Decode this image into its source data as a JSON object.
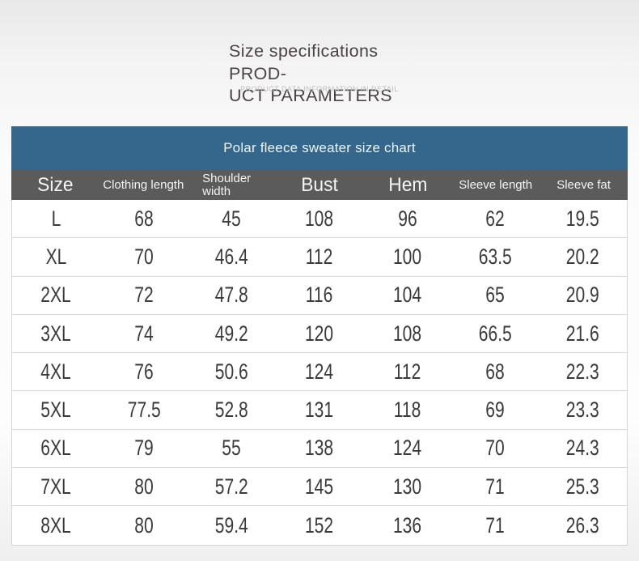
{
  "header": {
    "title_line1": "Size specifications PROD-",
    "title_line2": "UCT PARAMETERS",
    "subtitle": "PRODUCT DATA INFORMATION IN DETAIL"
  },
  "size_chart": {
    "caption": "Polar fleece sweater size chart",
    "columns": [
      {
        "label": "Size",
        "emphasis": "lg"
      },
      {
        "label": "Clothing length",
        "emphasis": "sm"
      },
      {
        "label": "Shoulder width",
        "emphasis": "sm",
        "wrap": true
      },
      {
        "label": "Bust",
        "emphasis": "lg"
      },
      {
        "label": "Hem",
        "emphasis": "lg"
      },
      {
        "label": "Sleeve length",
        "emphasis": "sm"
      },
      {
        "label": "Sleeve fat",
        "emphasis": "sm"
      }
    ],
    "rows": [
      [
        "L",
        "68",
        "45",
        "108",
        "96",
        "62",
        "19.5"
      ],
      [
        "XL",
        "70",
        "46.4",
        "112",
        "100",
        "63.5",
        "20.2"
      ],
      [
        "2XL",
        "72",
        "47.8",
        "116",
        "104",
        "65",
        "20.9"
      ],
      [
        "3XL",
        "74",
        "49.2",
        "120",
        "108",
        "66.5",
        "21.6"
      ],
      [
        "4XL",
        "76",
        "50.6",
        "124",
        "112",
        "68",
        "22.3"
      ],
      [
        "5XL",
        "77.5",
        "52.8",
        "131",
        "118",
        "69",
        "23.3"
      ],
      [
        "6XL",
        "79",
        "55",
        "138",
        "124",
        "70",
        "24.3"
      ],
      [
        "7XL",
        "80",
        "57.2",
        "145",
        "130",
        "71",
        "25.3"
      ],
      [
        "8XL",
        "80",
        "59.4",
        "152",
        "136",
        "71",
        "26.3"
      ]
    ]
  },
  "colors": {
    "caption_bg": "#35678c",
    "header_bg": "#5b5b5b",
    "title_text": "#4b4246"
  }
}
